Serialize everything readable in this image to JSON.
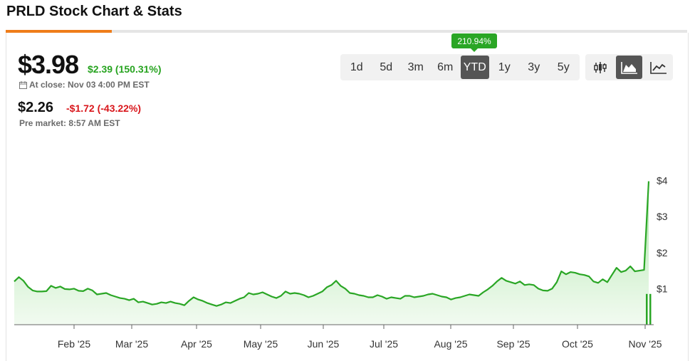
{
  "page": {
    "title": "PRLD Stock Chart & Stats"
  },
  "quote": {
    "price": "$3.98",
    "change": "$2.39 (150.31%)",
    "close_info": "At close: Nov 03 4:00 PM EST",
    "pre_price": "$2.26",
    "pre_change": "-$1.72 (-43.22%)",
    "pre_info": "Pre market: 8:57 AM EST"
  },
  "toolbar": {
    "performance_badge": "210.94%",
    "ranges": [
      "1d",
      "5d",
      "3m",
      "6m",
      "YTD",
      "1y",
      "3y",
      "5y"
    ],
    "active_range": "YTD",
    "chart_types": [
      "candlestick-icon",
      "mountain-chart-icon",
      "line-chart-icon"
    ],
    "active_chart_type": "mountain-chart-icon"
  },
  "colors": {
    "positive": "#26a31f",
    "negative": "#d9161b",
    "accent": "#ef7d1a",
    "line": "#2aa625"
  },
  "chart_data": {
    "type": "area",
    "x_labels": [
      "Feb '25",
      "Mar '25",
      "Apr '25",
      "May '25",
      "Jun '25",
      "Jul '25",
      "Aug '25",
      "Sep '25",
      "Oct '25",
      "Nov '25"
    ],
    "y_ticks": [
      "$1",
      "$2",
      "$3",
      "$4"
    ],
    "y_tick_values": [
      1,
      2,
      3,
      4
    ],
    "ylim": [
      0,
      4.3
    ],
    "series": [
      {
        "values": [
          1.2,
          1.32,
          1.22,
          1.05,
          0.95,
          0.92,
          0.92,
          0.93,
          1.08,
          1.02,
          1.06,
          0.99,
          0.98,
          1.0,
          0.94,
          0.93,
          1.0,
          0.95,
          0.84,
          0.86,
          0.88,
          0.82,
          0.78,
          0.74,
          0.72,
          0.68,
          0.72,
          0.62,
          0.64,
          0.6,
          0.56,
          0.58,
          0.62,
          0.6,
          0.64,
          0.6,
          0.58,
          0.54,
          0.66,
          0.76,
          0.7,
          0.66,
          0.6,
          0.56,
          0.52,
          0.56,
          0.62,
          0.6,
          0.66,
          0.72,
          0.76,
          0.88,
          0.84,
          0.86,
          0.9,
          0.84,
          0.78,
          0.74,
          0.8,
          0.92,
          0.86,
          0.88,
          0.86,
          0.82,
          0.76,
          0.8,
          0.86,
          0.92,
          1.04,
          1.1,
          1.22,
          1.08,
          1.0,
          0.88,
          0.86,
          0.82,
          0.8,
          0.76,
          0.76,
          0.82,
          0.78,
          0.72,
          0.76,
          0.74,
          0.72,
          0.8,
          0.8,
          0.76,
          0.78,
          0.8,
          0.84,
          0.86,
          0.82,
          0.78,
          0.76,
          0.7,
          0.74,
          0.76,
          0.8,
          0.84,
          0.82,
          0.8,
          0.9,
          0.98,
          1.08,
          1.2,
          1.3,
          1.22,
          1.18,
          1.14,
          1.2,
          1.1,
          1.12,
          1.1,
          1.0,
          0.95,
          0.94,
          1.0,
          1.18,
          1.48,
          1.4,
          1.46,
          1.44,
          1.4,
          1.38,
          1.34,
          1.2,
          1.16,
          1.26,
          1.18,
          1.38,
          1.58,
          1.46,
          1.5,
          1.62,
          1.48,
          1.5,
          1.52,
          3.98
        ]
      }
    ],
    "volume_last": [
      0.9,
      0.9
    ]
  }
}
